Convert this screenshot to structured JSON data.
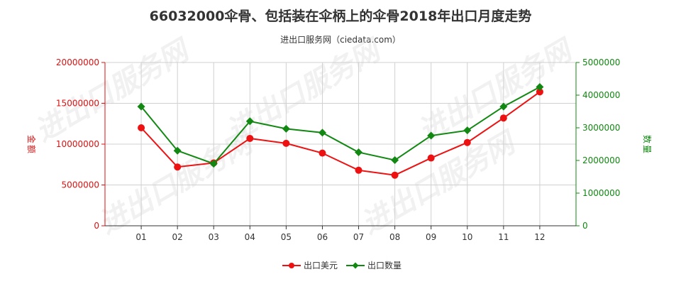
{
  "chart_data": {
    "type": "line",
    "title": "66032000伞骨、包括装在伞柄上的伞骨2018年出口月度走势",
    "subtitle": "进出口服务网（ciedata.com）",
    "categories": [
      "01",
      "02",
      "03",
      "04",
      "05",
      "06",
      "07",
      "08",
      "09",
      "10",
      "11",
      "12"
    ],
    "y_left": {
      "label": "金额",
      "ylim": [
        0,
        20000000
      ],
      "ticks": [
        0,
        5000000,
        10000000,
        15000000,
        20000000
      ],
      "tick_labels": [
        "0",
        "5000000",
        "10000000",
        "15000000",
        "20000000"
      ],
      "color": "#dd1111"
    },
    "y_right": {
      "label": "数量",
      "ylim": [
        0,
        5000000
      ],
      "ticks": [
        0,
        1000000,
        2000000,
        3000000,
        4000000,
        5000000
      ],
      "tick_labels": [
        "0",
        "1000000",
        "2000000",
        "3000000",
        "4000000",
        "5000000"
      ],
      "color": "#118811"
    },
    "series": [
      {
        "name": "出口美元",
        "axis": "left",
        "color": "#ee1111",
        "marker": "circle",
        "values": [
          12000000,
          7200000,
          7700000,
          10700000,
          10100000,
          8900000,
          6800000,
          6200000,
          8300000,
          10200000,
          13200000,
          16400000
        ]
      },
      {
        "name": "出口数量",
        "axis": "right",
        "color": "#118811",
        "marker": "diamond",
        "values": [
          3650000,
          2300000,
          1900000,
          3200000,
          2970000,
          2850000,
          2250000,
          2010000,
          2760000,
          2920000,
          3650000,
          4250000
        ]
      }
    ],
    "grid": true,
    "legend_position": "bottom-center",
    "watermark": "进出口服务网"
  }
}
